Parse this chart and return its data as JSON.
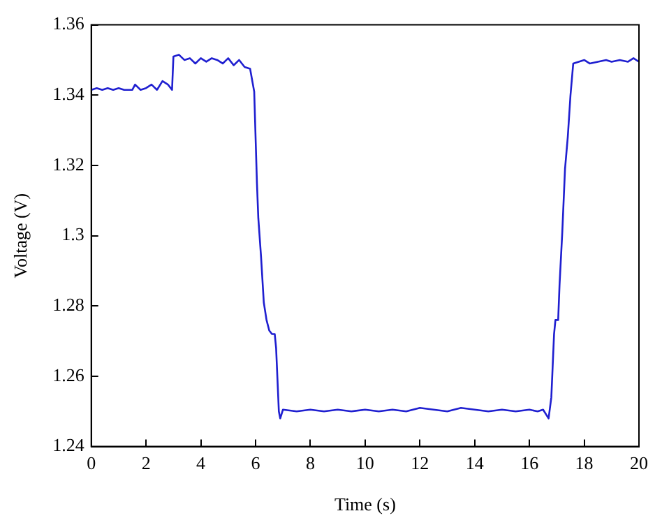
{
  "chart_data": {
    "type": "line",
    "xlabel": "Time (s)",
    "ylabel": "Voltage (V)",
    "xlim": [
      0,
      20
    ],
    "xticks": [
      0,
      2,
      4,
      6,
      8,
      10,
      12,
      14,
      16,
      18,
      20
    ],
    "ylim": [
      1.24,
      1.36
    ],
    "yticks": [
      1.24,
      1.26,
      1.28,
      1.3,
      1.32,
      1.34,
      1.36
    ],
    "grid": false,
    "legend": false,
    "marker": "none",
    "line_style": "solid",
    "series": [
      {
        "color": "#1f1fd0",
        "x": [
          0,
          0.2,
          0.4,
          0.6,
          0.8,
          1,
          1.2,
          1.5,
          1.6,
          1.8,
          2,
          2.2,
          2.4,
          2.6,
          2.8,
          2.95,
          3,
          3.2,
          3.4,
          3.6,
          3.8,
          4,
          4.2,
          4.4,
          4.6,
          4.8,
          5,
          5.2,
          5.4,
          5.6,
          5.8,
          5.95,
          6.05,
          6.1,
          6.2,
          6.3,
          6.4,
          6.5,
          6.6,
          6.7,
          6.75,
          6.85,
          6.9,
          7,
          7.5,
          8,
          8.5,
          9,
          9.5,
          10,
          10.5,
          11,
          11.5,
          12,
          12.5,
          13,
          13.5,
          14,
          14.5,
          15,
          15.5,
          16,
          16.3,
          16.5,
          16.7,
          16.8,
          16.9,
          16.95,
          17.05,
          17.1,
          17.2,
          17.3,
          17.4,
          17.5,
          17.6,
          17.8,
          18,
          18.2,
          18.5,
          18.8,
          19,
          19.3,
          19.6,
          19.8,
          20
        ],
        "values": [
          1.3415,
          1.342,
          1.3415,
          1.342,
          1.3415,
          1.342,
          1.3415,
          1.3415,
          1.343,
          1.3415,
          1.342,
          1.343,
          1.3415,
          1.344,
          1.343,
          1.3415,
          1.351,
          1.3515,
          1.35,
          1.3505,
          1.349,
          1.3505,
          1.3495,
          1.3505,
          1.35,
          1.349,
          1.3505,
          1.3485,
          1.35,
          1.348,
          1.3475,
          1.341,
          1.315,
          1.305,
          1.294,
          1.281,
          1.276,
          1.273,
          1.272,
          1.272,
          1.268,
          1.25,
          1.248,
          1.2505,
          1.25,
          1.2505,
          1.25,
          1.2505,
          1.25,
          1.2505,
          1.25,
          1.2505,
          1.25,
          1.251,
          1.2505,
          1.25,
          1.251,
          1.2505,
          1.25,
          1.2505,
          1.25,
          1.2505,
          1.25,
          1.2505,
          1.248,
          1.254,
          1.272,
          1.276,
          1.276,
          1.286,
          1.301,
          1.319,
          1.328,
          1.34,
          1.349,
          1.3495,
          1.35,
          1.349,
          1.3495,
          1.35,
          1.3495,
          1.35,
          1.3495,
          1.3505,
          1.3495
        ]
      }
    ]
  }
}
